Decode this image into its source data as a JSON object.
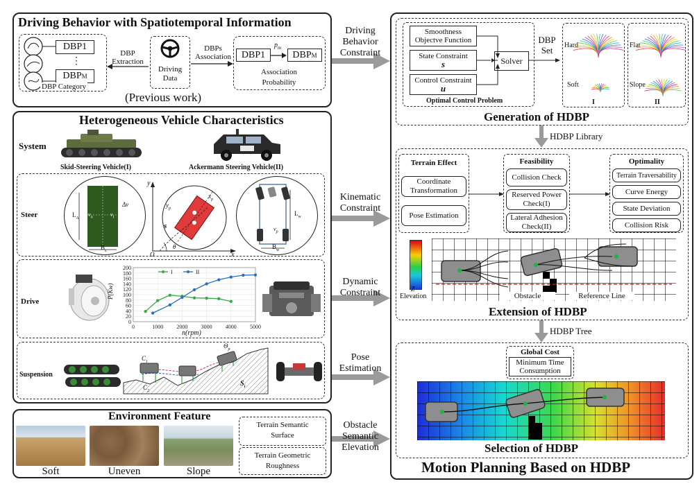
{
  "driving_behavior": {
    "title": "Driving Behavior with Spatiotemporal Information",
    "dbp1": "DBP1",
    "dots": "⋮",
    "dbpm": "DBP",
    "dbpm_sub": "M",
    "category": "DBP Category",
    "extraction": [
      "DBP",
      "Extraction"
    ],
    "driving_data": [
      "Driving",
      "Data"
    ],
    "association": [
      "DBPs",
      "Association"
    ],
    "assoc_dbp1": "DBP1",
    "assoc_dbpm": "DBP",
    "assoc_dbpm_sub": "M",
    "pm": "p",
    "pm_sub": "m",
    "probability": [
      "Association",
      "Probability"
    ],
    "previous": "(Previous work)"
  },
  "hetero": {
    "title": "Heterogeneous Vehicle Characteristics",
    "system": "System",
    "skid_label": "Skid-Steering Vehicle(I)",
    "ack_label": "Ackermann Steering  Vehicle(II)",
    "steer": "Steer",
    "drive": "Drive",
    "suspension": "Suspension",
    "steer_labels": {
      "la": "L",
      "la_sub": "A",
      "dv": "Δv",
      "vo": "v",
      "vo_sub": "o",
      "vi": "v",
      "vi_sub": "i",
      "bs": "B",
      "bs_sub": "s",
      "y": "y",
      "x": "x",
      "O": "O",
      "theta": "θ",
      "s": "s",
      "yp": "y",
      "yp_sub": "p",
      "xp": "x",
      "xp_sub": "p",
      "lw": "L",
      "lw_sub": "w",
      "bw": "B",
      "bw_sub": "w",
      "vq": "v",
      "vq_sub": "p"
    },
    "susp_labels": {
      "c1": "C",
      "c1_sub": "1",
      "c2": "C",
      "c2_sub": "2",
      "theta": "Θ",
      "theta_sub": "p",
      "si": "S",
      "si_sub": "i"
    }
  },
  "chart_data": {
    "type": "line",
    "x_label": "n(rpm)",
    "y_label": "P(Kw)",
    "x_ticks": [
      0,
      1000,
      2000,
      3000,
      4000,
      5000
    ],
    "y_ticks": [
      0,
      20,
      40,
      60,
      80,
      100,
      120,
      140,
      160,
      180,
      200
    ],
    "xlim": [
      0,
      5000
    ],
    "ylim": [
      0,
      200
    ],
    "legend_position": "top",
    "series": [
      {
        "name": "I",
        "color": "#3aa84a",
        "x": [
          500,
          1000,
          1500,
          2000,
          2500,
          3000,
          3500,
          4000
        ],
        "y": [
          38,
          78,
          98,
          94,
          88,
          87,
          85,
          75
        ]
      },
      {
        "name": "II",
        "color": "#2f6fb8",
        "x": [
          800,
          1500,
          2000,
          2500,
          3000,
          3500,
          4000,
          4500,
          5000
        ],
        "y": [
          32,
          62,
          90,
          118,
          140,
          155,
          165,
          172,
          173
        ]
      }
    ]
  },
  "environment": {
    "title": "Environment Feature",
    "photos": [
      "Soft",
      "Uneven",
      "Slope"
    ],
    "semantic": [
      "Terrain Semantic",
      "Surface"
    ],
    "geometric": [
      "Terrain Geometric",
      "Roughness"
    ]
  },
  "arrows": {
    "a1": [
      "Driving",
      "Behavior",
      "Constraint"
    ],
    "a2": [
      "Kinematic",
      "Constraint"
    ],
    "a3": [
      "Dynamic",
      "Constraint"
    ],
    "a4": [
      "Pose",
      "Estimation"
    ],
    "a5": [
      "Obstacle",
      "Semantic",
      "Elevation"
    ]
  },
  "generation": {
    "smoothness": [
      "Smoothness",
      "Objectve Function"
    ],
    "state": "State Constraint",
    "state_sym": "s",
    "control": "Control Constraint",
    "control_sym": "u",
    "solver": "Solver",
    "ocp": "Optimal Control Problem",
    "dbp_set": [
      "DBP",
      "Set"
    ],
    "hard": "Hard",
    "soft": "Soft",
    "flat": "Flat",
    "slope": "Slope",
    "roman1": "I",
    "roman2": "II",
    "title": "Generation of HDBP"
  },
  "library": "HDBP Library",
  "extension": {
    "terrain_effect": "Terrain Effect",
    "coord": [
      "Coordinate",
      "Transformation"
    ],
    "pose": "Pose Estimation",
    "feasibility": "Feasibility",
    "collision": "Collision Check",
    "power": [
      "Reserved Power",
      "Check(I)"
    ],
    "adhesion": [
      "Lateral Adhesion",
      "Check(II)"
    ],
    "optimality": "Optimality",
    "trav": "Terrain Traversability",
    "curve": "Curve Energy",
    "state_dev": "State Deviation",
    "risk": "Collision Risk",
    "z": "Z",
    "elevation": "Elevation",
    "obstacle": "Obstacle",
    "reference": "Reference Line",
    "title": "Extension of HDBP"
  },
  "tree": "HDBP Tree",
  "selection": {
    "global_cost": "Global Cost",
    "min_time": [
      "Minimum Time",
      "Consumption"
    ],
    "title": "Selection of HDBP"
  },
  "main_title": "Motion Planning Based on HDBP"
}
